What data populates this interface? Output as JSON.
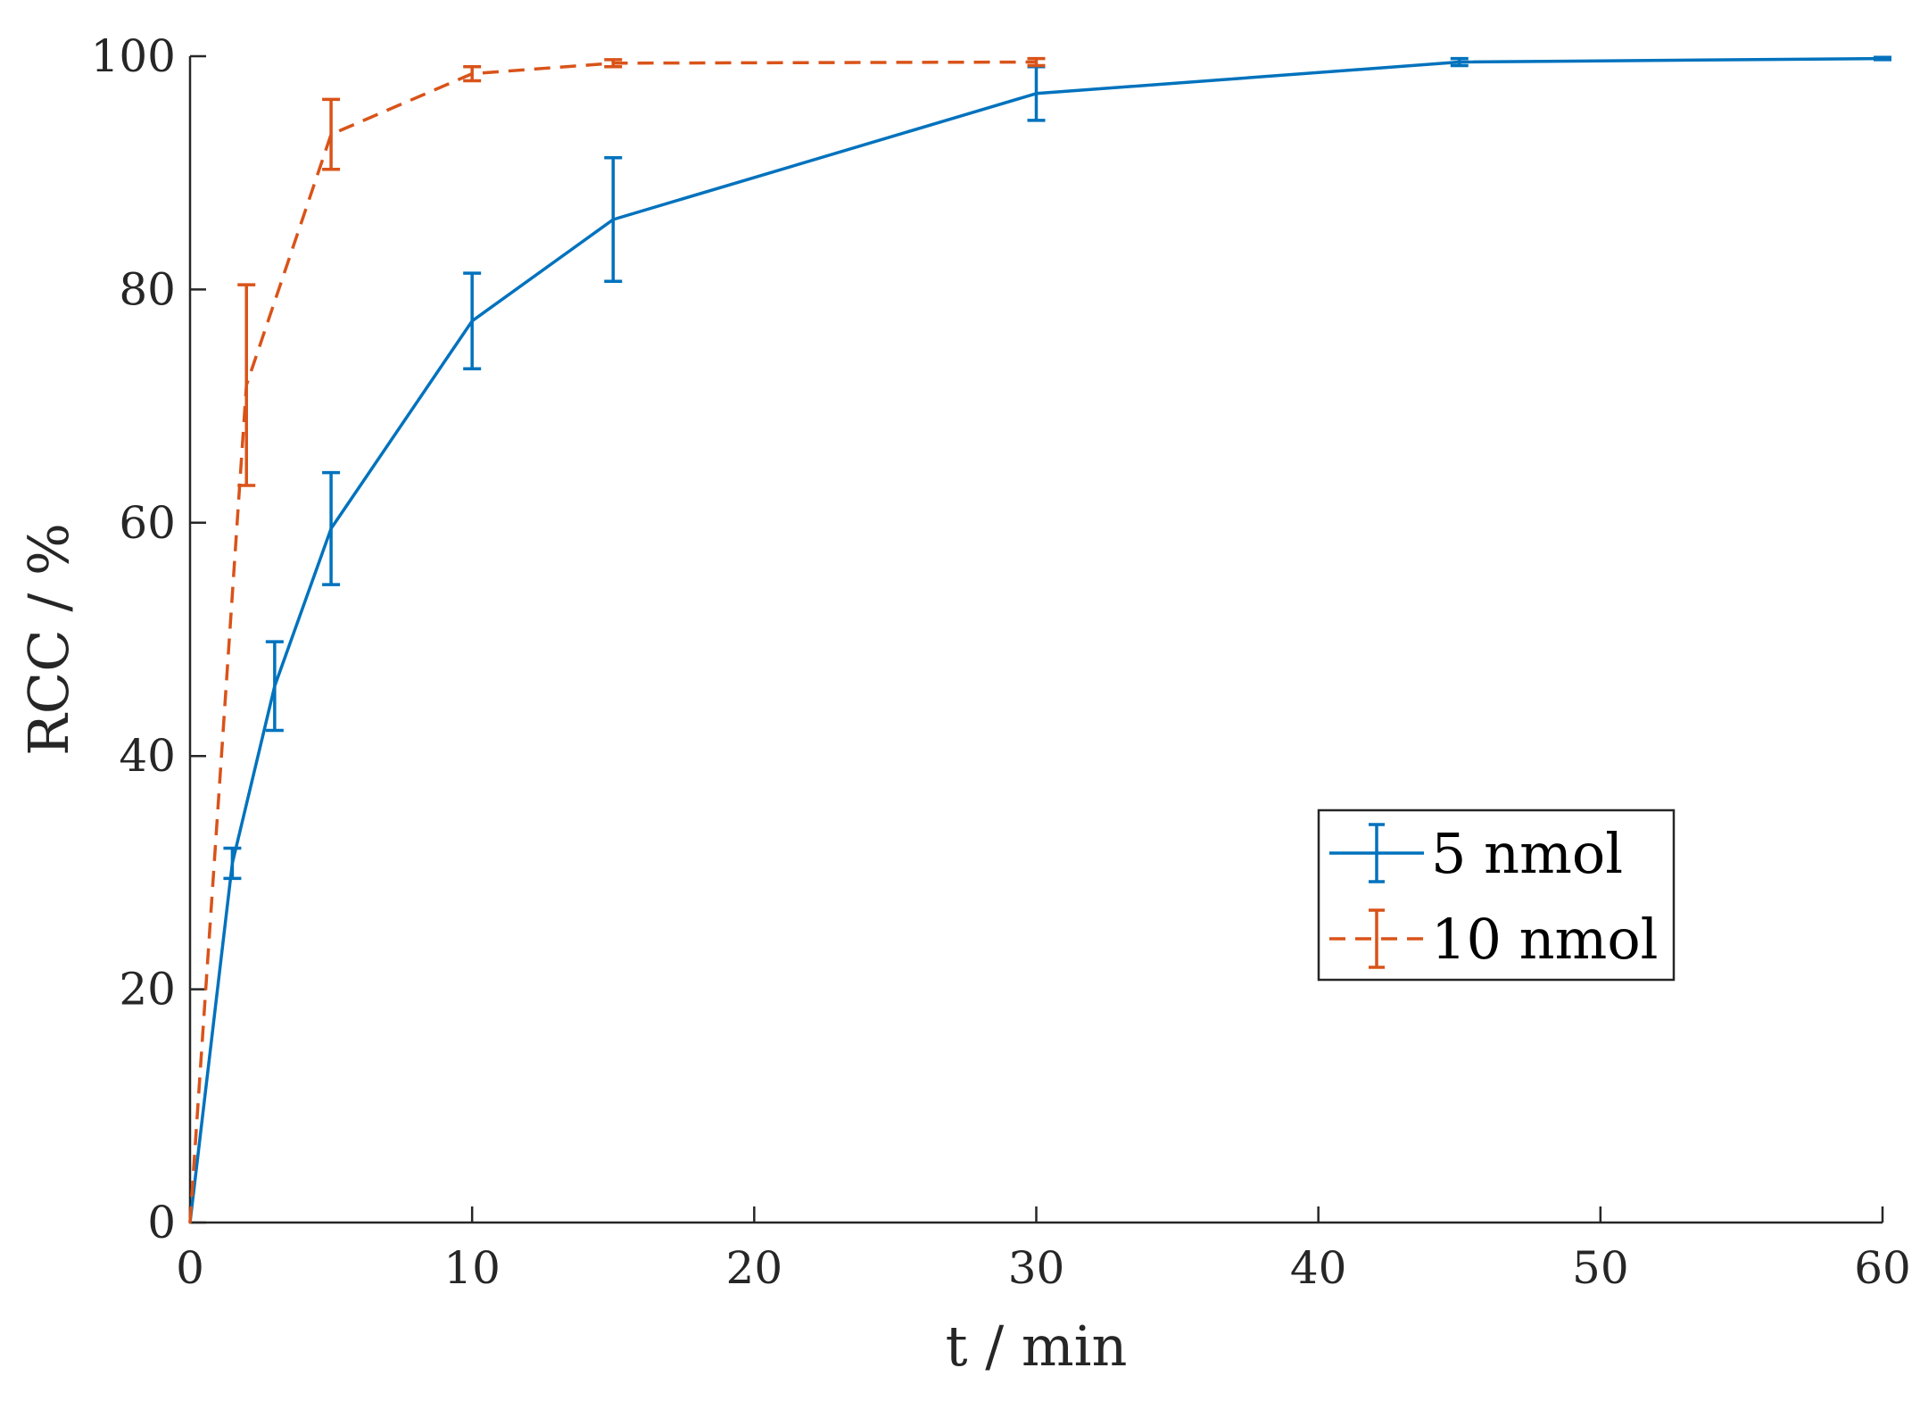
{
  "chart_data": {
    "type": "line",
    "title": "",
    "xlabel": "t / min",
    "ylabel": "RCC / %",
    "xlim": [
      0,
      60
    ],
    "ylim": [
      0,
      100
    ],
    "xticks": [
      0,
      10,
      20,
      30,
      40,
      50,
      60
    ],
    "yticks": [
      0,
      20,
      40,
      60,
      80,
      100
    ],
    "grid": false,
    "legend_position": "lower-right",
    "series": [
      {
        "name": "5 nmol",
        "color": "#0072BD",
        "line_style": "solid",
        "x": [
          0,
          1.5,
          3,
          5,
          10,
          15,
          30,
          45,
          60
        ],
        "y": [
          0,
          30.8,
          46.0,
          59.5,
          77.3,
          86.0,
          96.8,
          99.5,
          99.8
        ],
        "error": [
          0,
          1.3,
          3.8,
          4.8,
          4.1,
          5.3,
          2.3,
          0.3,
          0.1
        ]
      },
      {
        "name": "10 nmol",
        "color": "#D95319",
        "line_style": "dashed",
        "x": [
          0,
          2,
          5,
          10,
          15,
          30
        ],
        "y": [
          0,
          71.8,
          93.3,
          98.5,
          99.4,
          99.5
        ],
        "error": [
          0,
          8.6,
          3.0,
          0.6,
          0.3,
          0.3
        ]
      }
    ]
  }
}
